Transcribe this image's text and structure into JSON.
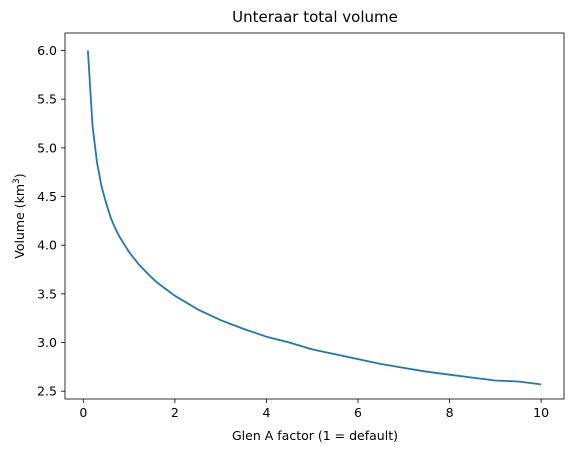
{
  "chart_data": {
    "type": "line",
    "title": "Unteraar total volume",
    "xlabel": "Glen A factor (1 = default)",
    "ylabel_main": "Volume (km",
    "ylabel_sup": "3",
    "ylabel_end": ")",
    "xlim": [
      -0.4,
      10.5
    ],
    "ylim": [
      2.42,
      6.18
    ],
    "xticks": [
      0,
      2,
      4,
      6,
      8,
      10
    ],
    "xtick_labels": [
      "0",
      "2",
      "4",
      "6",
      "8",
      "10"
    ],
    "yticks": [
      2.5,
      3.0,
      3.5,
      4.0,
      4.5,
      5.0,
      5.5,
      6.0
    ],
    "ytick_labels": [
      "2.5",
      "3.0",
      "3.5",
      "4.0",
      "4.5",
      "5.0",
      "5.5",
      "6.0"
    ],
    "grid": false,
    "series": [
      {
        "color": "#1f77b4",
        "x": [
          0.1,
          0.2,
          0.3,
          0.4,
          0.5,
          0.6,
          0.7,
          0.8,
          1.0,
          1.2,
          1.4,
          1.6,
          1.8,
          2.0,
          2.5,
          3.0,
          3.5,
          4.0,
          4.5,
          5.0,
          5.5,
          6.0,
          6.5,
          7.0,
          7.5,
          8.0,
          8.5,
          9.0,
          9.5,
          10.0
        ],
        "y": [
          6.0,
          5.23,
          4.85,
          4.6,
          4.43,
          4.28,
          4.17,
          4.08,
          3.93,
          3.81,
          3.71,
          3.62,
          3.55,
          3.48,
          3.34,
          3.23,
          3.14,
          3.06,
          3.0,
          2.93,
          2.88,
          2.83,
          2.78,
          2.74,
          2.7,
          2.67,
          2.64,
          2.61,
          2.6,
          2.57
        ]
      }
    ]
  }
}
